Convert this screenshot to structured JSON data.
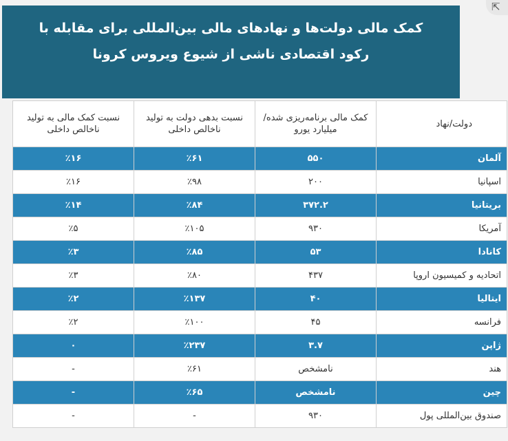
{
  "header": {
    "title_line1": "کمک مالی دولت‌ها و نهادهای مالی بین‌المللی برای مقابله  با",
    "title_line2": "رکود اقتصادی ناشی از شیوع ویروس کرونا"
  },
  "corner_icon": "share-icon",
  "table": {
    "headers": [
      "دولت/نهاد",
      "کمک مالی برنامه‌ریزی شده/ میلیارد یورو",
      "نسبت بدهی دولت به تولید ناخالص داخلی",
      "نسبت کمک مالی به تولید ناخالص داخلی"
    ],
    "rows": [
      {
        "country": "آلمان",
        "aid": "۵۵۰",
        "debt": "٪۶۱",
        "ratio": "٪۱۶",
        "style": "blue"
      },
      {
        "country": "اسپانیا",
        "aid": "۲۰۰",
        "debt": "٪۹۸",
        "ratio": "٪۱۶",
        "style": "white"
      },
      {
        "country": "بریتانیا",
        "aid": "۳۷۲.۲",
        "debt": "٪۸۴",
        "ratio": "٪۱۴",
        "style": "blue"
      },
      {
        "country": "آمریکا",
        "aid": "۹۳۰",
        "debt": "٪۱۰۵",
        "ratio": "٪۵",
        "style": "white"
      },
      {
        "country": "کانادا",
        "aid": "۵۳",
        "debt": "٪۸۵",
        "ratio": "٪۳",
        "style": "blue"
      },
      {
        "country": "اتحادیه و کمیسیون اروپا",
        "aid": "۴۳۷",
        "debt": "٪۸۰",
        "ratio": "٪۳",
        "style": "white"
      },
      {
        "country": "ایتالیا",
        "aid": "۴۰",
        "debt": "٪۱۳۷",
        "ratio": "٪۲",
        "style": "blue"
      },
      {
        "country": "فرانسه",
        "aid": "۴۵",
        "debt": "٪۱۰۰",
        "ratio": "٪۲",
        "style": "white"
      },
      {
        "country": "ژاپن",
        "aid": "۳.۷",
        "debt": "٪۲۳۷",
        "ratio": "۰",
        "style": "blue"
      },
      {
        "country": "هند",
        "aid": "نامشخص",
        "debt": "٪۶۱",
        "ratio": "-",
        "style": "white"
      },
      {
        "country": "چین",
        "aid": "نامشخص",
        "debt": "٪۶۵",
        "ratio": "-",
        "style": "blue"
      },
      {
        "country": "صندوق بین‌المللی پول",
        "aid": "۹۳۰",
        "debt": "-",
        "ratio": "-",
        "style": "white"
      }
    ]
  }
}
